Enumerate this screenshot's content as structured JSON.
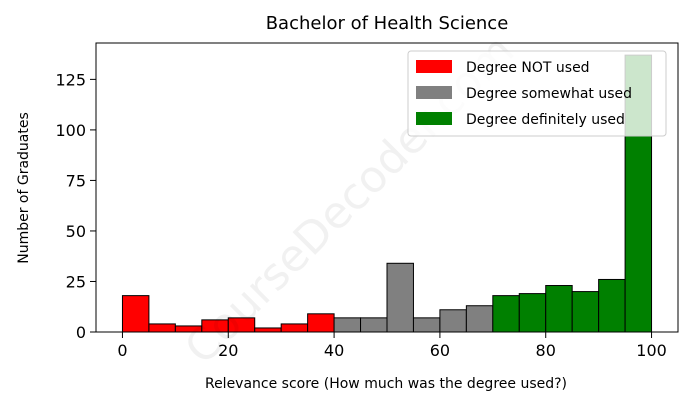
{
  "chart_data": {
    "type": "bar",
    "title": "Bachelor of Health Science",
    "xlabel": "Relevance score (How much was the degree used?)",
    "ylabel": "Number of Graduates",
    "xlim": [
      -5,
      105
    ],
    "ylim": [
      0,
      143
    ],
    "xticks": [
      0,
      20,
      40,
      60,
      80,
      100
    ],
    "yticks": [
      0,
      25,
      50,
      75,
      100,
      125
    ],
    "bin_width": 5,
    "legend_position": "top-right",
    "grid": false,
    "watermark": "CourseDecoder.com",
    "series": [
      {
        "name": "Degree NOT used",
        "color": "#ff0000",
        "bins": [
          {
            "x0": 0,
            "x1": 5,
            "count": 18
          },
          {
            "x0": 5,
            "x1": 10,
            "count": 4
          },
          {
            "x0": 10,
            "x1": 15,
            "count": 3
          },
          {
            "x0": 15,
            "x1": 20,
            "count": 6
          },
          {
            "x0": 20,
            "x1": 25,
            "count": 7
          },
          {
            "x0": 25,
            "x1": 30,
            "count": 2
          },
          {
            "x0": 30,
            "x1": 35,
            "count": 4
          },
          {
            "x0": 35,
            "x1": 40,
            "count": 9
          }
        ]
      },
      {
        "name": "Degree somewhat used",
        "color": "#808080",
        "bins": [
          {
            "x0": 40,
            "x1": 45,
            "count": 7
          },
          {
            "x0": 45,
            "x1": 50,
            "count": 7
          },
          {
            "x0": 50,
            "x1": 55,
            "count": 34
          },
          {
            "x0": 55,
            "x1": 60,
            "count": 7
          },
          {
            "x0": 60,
            "x1": 65,
            "count": 11
          },
          {
            "x0": 65,
            "x1": 70,
            "count": 13
          }
        ]
      },
      {
        "name": "Degree definitely used",
        "color": "#008000",
        "bins": [
          {
            "x0": 70,
            "x1": 75,
            "count": 18
          },
          {
            "x0": 75,
            "x1": 80,
            "count": 19
          },
          {
            "x0": 80,
            "x1": 85,
            "count": 23
          },
          {
            "x0": 85,
            "x1": 90,
            "count": 20
          },
          {
            "x0": 90,
            "x1": 95,
            "count": 26
          },
          {
            "x0": 95,
            "x1": 100,
            "count": 137
          }
        ]
      }
    ]
  }
}
